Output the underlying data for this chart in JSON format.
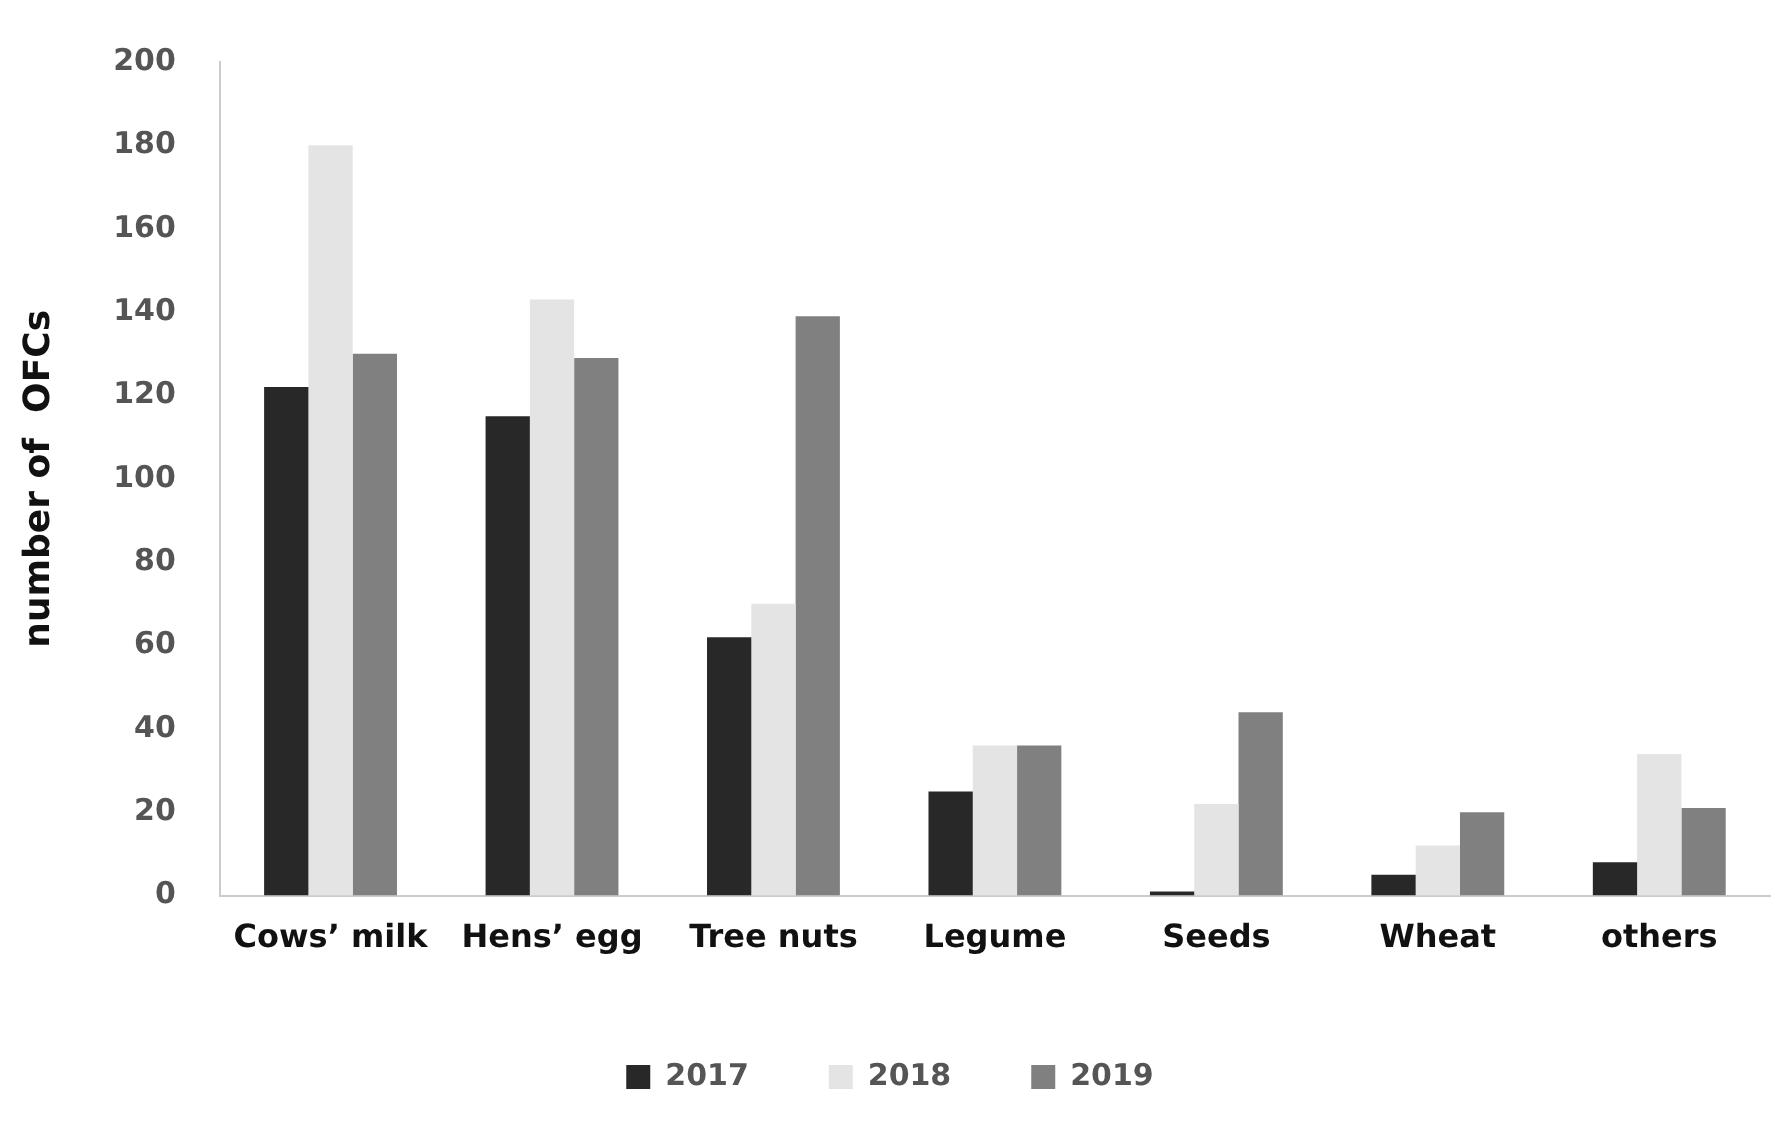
{
  "chart_data": {
    "type": "bar",
    "ylabel": "number of  OFCs",
    "categories": [
      "Cows’ milk",
      "Hens’ egg",
      "Tree nuts",
      "Legume",
      "Seeds",
      "Wheat",
      "others"
    ],
    "series": [
      {
        "name": "2017",
        "color": "#282828",
        "values": [
          122,
          115,
          62,
          25,
          1,
          5,
          8
        ]
      },
      {
        "name": "2018",
        "color": "#e4e4e4",
        "values": [
          180,
          143,
          70,
          36,
          22,
          12,
          34
        ]
      },
      {
        "name": "2019",
        "color": "#808080",
        "values": [
          130,
          129,
          139,
          36,
          44,
          20,
          21
        ]
      }
    ],
    "ylim": [
      0,
      200
    ],
    "yticks": [
      0,
      20,
      40,
      60,
      80,
      100,
      120,
      140,
      160,
      180,
      200
    ],
    "grid": false,
    "legend": "bottom"
  }
}
